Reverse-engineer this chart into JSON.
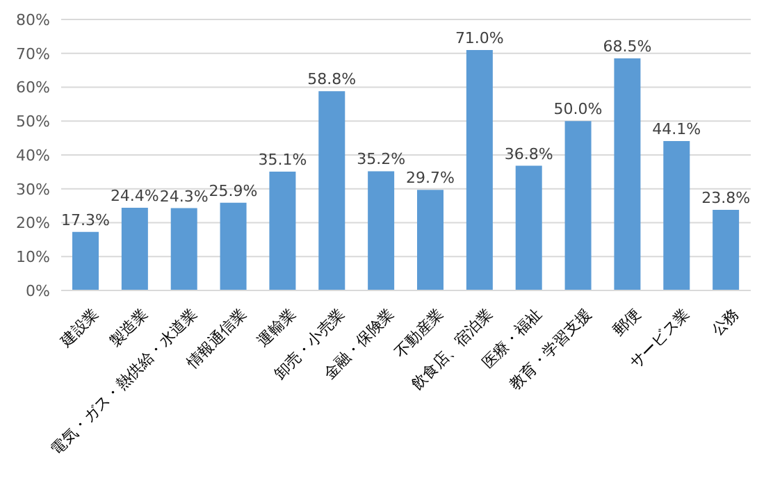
{
  "chart_data": {
    "type": "bar",
    "categories": [
      "建設業",
      "製造業",
      "電気・ガス・熱供給・水道業",
      "情報通信業",
      "運輸業",
      "卸売・小売業",
      "金融・保険業",
      "不動産業",
      "飲食店、宿泊業",
      "医療・福祉",
      "教育・学習支援",
      "郵便",
      "サービス業",
      "公務"
    ],
    "values": [
      17.3,
      24.4,
      24.3,
      25.9,
      35.1,
      58.8,
      35.2,
      29.7,
      71.0,
      36.8,
      50.0,
      68.5,
      44.1,
      23.8
    ],
    "value_labels": [
      "17.3%",
      "24.4%",
      "24.3%",
      "25.9%",
      "35.1%",
      "58.8%",
      "35.2%",
      "29.7%",
      "71.0%",
      "36.8%",
      "50.0%",
      "68.5%",
      "44.1%",
      "23.8%"
    ],
    "color": "#5b9bd5",
    "ylim": [
      0,
      80
    ],
    "yticks": [
      {
        "value": 0,
        "label": "0%"
      },
      {
        "value": 10,
        "label": "10%"
      },
      {
        "value": 20,
        "label": "20%"
      },
      {
        "value": 30,
        "label": "30%"
      },
      {
        "value": 40,
        "label": "40%"
      },
      {
        "value": 50,
        "label": "50%"
      },
      {
        "value": 60,
        "label": "60%"
      },
      {
        "value": 70,
        "label": "70%"
      },
      {
        "value": 80,
        "label": "80%"
      }
    ],
    "grid": "y"
  }
}
